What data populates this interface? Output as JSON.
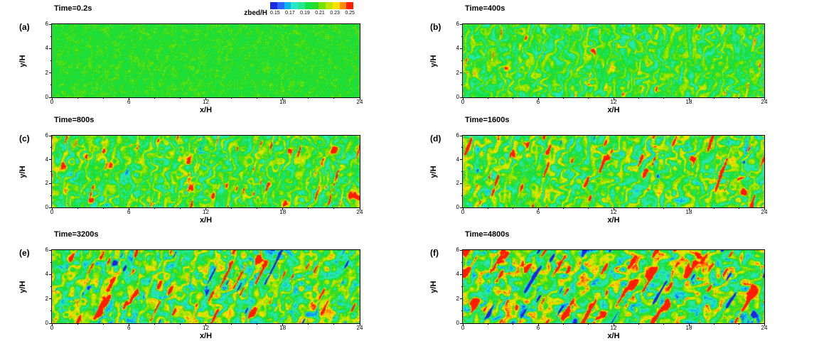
{
  "chart_data": {
    "type": "heatmap",
    "x_label": "x/H",
    "y_label": "y/H",
    "x_range": [
      0,
      24
    ],
    "y_range": [
      0,
      6
    ],
    "x_ticks": [
      0,
      6,
      12,
      18,
      24
    ],
    "y_ticks": [
      0,
      2,
      4,
      6
    ],
    "x_minor_ticks": [
      2,
      4,
      8,
      10,
      14,
      16,
      20,
      22
    ],
    "y_minor_ticks": [
      1,
      3,
      5
    ],
    "colorbar": {
      "label": "zbed/H",
      "tick_labels": [
        "0.15",
        "0.17",
        "0.19",
        "0.21",
        "0.23",
        "0.25"
      ],
      "range": [
        0.14,
        0.26
      ],
      "colors": [
        "#1e28dc",
        "#2866ff",
        "#0ab4f0",
        "#28e6c8",
        "#28e68c",
        "#14e146",
        "#28dc28",
        "#78e100",
        "#bee600",
        "#ffe100",
        "#ff8c0a",
        "#ff1e00"
      ]
    },
    "panels": [
      {
        "letter": "(a)",
        "title": "Time=0.2s",
        "time_s": 0.2,
        "description": "nearly uniform green bed (zbed/H ~0.20) with fine random speckle",
        "pattern": {
          "seed": 11,
          "base": 0.203,
          "band_amp": 0.003,
          "wavelength": 14,
          "band_angle_deg": 80,
          "wiggle": 1.5,
          "blob_amp": 0.004,
          "fine_amp": 0.007,
          "speck_amp": 0.01,
          "speck_thresh": 0.96
        }
      },
      {
        "letter": "(b)",
        "title": "Time=400s",
        "time_s": 400,
        "description": "incipient near-vertical oblique ripples: thin wavy yellow crests and cyan troughs on green",
        "pattern": {
          "seed": 22,
          "base": 0.202,
          "band_amp": 0.015,
          "wavelength": 16,
          "band_angle_deg": 78,
          "wiggle": 1.5,
          "blob_amp": 0.009,
          "fine_amp": 0.007,
          "feature_amp": 0.028,
          "hi_thresh": 0.82,
          "lo_amp": 0.012,
          "lo_thresh": 0.08,
          "feature_across": 5,
          "feature_along": 16,
          "speck_amp": 0.02,
          "speck_thresh": 0.993,
          "edge_warm": 0.012
        }
      },
      {
        "letter": "(c)",
        "title": "Time=800s",
        "time_s": 800,
        "description": "stronger oblique ripples, yellow crests with scattered orange/red specks, cyan troughs",
        "pattern": {
          "seed": 33,
          "base": 0.203,
          "band_amp": 0.018,
          "wavelength": 18,
          "band_angle_deg": 74,
          "wiggle": 1.5,
          "blob_amp": 0.011,
          "fine_amp": 0.008,
          "feature_amp": 0.038,
          "hi_thresh": 0.8,
          "lo_amp": 0.016,
          "lo_thresh": 0.08,
          "feature_across": 5,
          "feature_along": 18,
          "speck_amp": 0.028,
          "speck_thresh": 0.99,
          "edge_warm": 0.014
        }
      },
      {
        "letter": "(d)",
        "title": "Time=1600s",
        "time_s": 1600,
        "description": "coarsening oblique ripples with frequent red crest patches and deeper cyan troughs",
        "pattern": {
          "seed": 44,
          "base": 0.204,
          "band_amp": 0.021,
          "wavelength": 20,
          "band_angle_deg": 70,
          "wiggle": 1.4,
          "blob_amp": 0.013,
          "fine_amp": 0.008,
          "feature_amp": 0.052,
          "hi_thresh": 0.8,
          "lo_amp": 0.03,
          "lo_thresh": 0.07,
          "feature_across": 6,
          "feature_along": 20,
          "speck_amp": 0.03,
          "speck_thresh": 0.99,
          "edge_warm": 0.014
        }
      },
      {
        "letter": "(e)",
        "title": "Time=3200s",
        "time_s": 3200,
        "description": "large oblique dunes (~60 deg): red crest streaks, wide cyan troughs, elongated blue scour patches",
        "pattern": {
          "seed": 55,
          "base": 0.204,
          "band_amp": 0.024,
          "wavelength": 29,
          "band_angle_deg": 63,
          "wiggle": 1.2,
          "blob_amp": 0.016,
          "fine_amp": 0.009,
          "feature_amp": 0.06,
          "hi_thresh": 0.78,
          "lo_amp": 0.065,
          "lo_thresh": 0.1,
          "feature_across": 6,
          "feature_along": 24,
          "speck_amp": 0.03,
          "speck_thresh": 0.99,
          "edge_warm": 0.012
        }
      },
      {
        "letter": "(f)",
        "title": "Time=4800s",
        "time_s": 4800,
        "description": "fully developed oblique dunes: large dark-blue scour troughs and red crest streaks on green/cyan",
        "pattern": {
          "seed": 66,
          "base": 0.205,
          "band_amp": 0.027,
          "wavelength": 33,
          "band_angle_deg": 58,
          "wiggle": 1.1,
          "blob_amp": 0.018,
          "fine_amp": 0.009,
          "feature_amp": 0.065,
          "hi_thresh": 0.77,
          "lo_amp": 0.085,
          "lo_thresh": 0.13,
          "feature_across": 7,
          "feature_along": 28,
          "speck_amp": 0.03,
          "speck_thresh": 0.99,
          "edge_warm": 0.012
        }
      }
    ]
  }
}
